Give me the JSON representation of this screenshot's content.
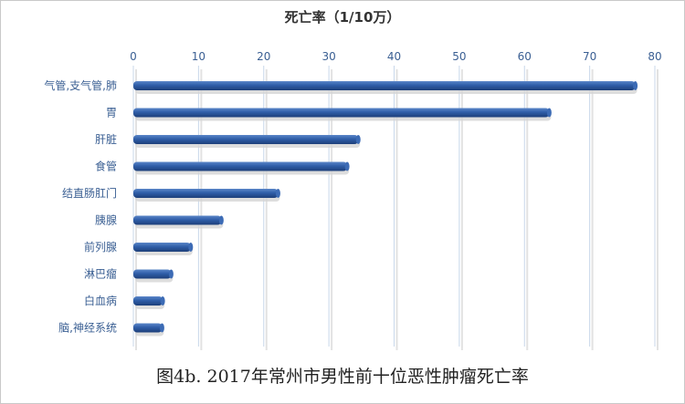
{
  "chart_data": {
    "type": "bar",
    "orientation": "horizontal",
    "xlabel": "死亡率（1/10万）",
    "categories": [
      "气管,支气管,肺",
      "胃",
      "肝脏",
      "食管",
      "结直肠肛门",
      "胰腺",
      "前列腺",
      "淋巴瘤",
      "白血病",
      "脑,神经系统"
    ],
    "values": [
      77.0,
      63.8,
      34.5,
      32.8,
      22.2,
      13.5,
      8.8,
      5.8,
      4.5,
      4.4
    ],
    "ticks": [
      "0",
      "10",
      "20",
      "30",
      "40",
      "50",
      "60",
      "70",
      "80"
    ],
    "xlim": [
      0,
      80
    ],
    "axis_position": "top",
    "grid": true,
    "bar_color": "#2f5ea8"
  },
  "caption": "图4b. 2017年常州市男性前十位恶性肿瘤死亡率"
}
